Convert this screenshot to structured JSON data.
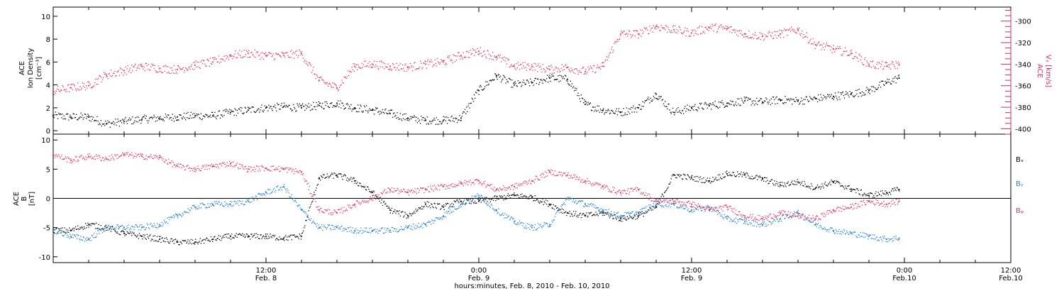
{
  "colors": {
    "black": "#000000",
    "red": "#e8325f",
    "blue": "#1f7fd9",
    "right_axis": "#c83060"
  },
  "chart_data": [
    {
      "type": "scatter",
      "panel": "top",
      "left_axis": {
        "label_lines": [
          "ACE",
          "Ion Density",
          "[cm⁻³]"
        ],
        "ylim": [
          -0.3,
          10.8
        ],
        "ticks": [
          0,
          2,
          4,
          6,
          8,
          10
        ]
      },
      "right_axis": {
        "label_lines": [
          "ACE",
          "Vₓ [km/s]"
        ],
        "ylim": [
          -405,
          -287
        ],
        "ticks": [
          -400,
          -380,
          -360,
          -340,
          -320,
          -300
        ]
      },
      "xlim_hours": [
        0,
        54
      ],
      "series": [
        {
          "name": "Ion Density",
          "color": "black",
          "axis": "left",
          "x": [
            0,
            1,
            2,
            3,
            4,
            5,
            6,
            7,
            8,
            9,
            10,
            11,
            12,
            13,
            14,
            15,
            16,
            17,
            18,
            19,
            20,
            21,
            22,
            23,
            24,
            25,
            26,
            27,
            28,
            29,
            30,
            31,
            32,
            33,
            34,
            35,
            36,
            37,
            38,
            39,
            40,
            41,
            42,
            43,
            44,
            45,
            46,
            47,
            47.7
          ],
          "y": [
            1.3,
            1.2,
            1.2,
            0.6,
            0.8,
            1.0,
            1.1,
            1.2,
            1.3,
            1.3,
            1.6,
            1.8,
            2.0,
            2.1,
            2.0,
            2.2,
            2.4,
            2.0,
            1.8,
            1.5,
            1.1,
            0.9,
            0.9,
            1.1,
            3.5,
            4.8,
            4.0,
            4.2,
            4.6,
            4.5,
            2.3,
            1.8,
            1.6,
            2.0,
            3.2,
            1.6,
            2.0,
            2.2,
            2.4,
            2.6,
            2.5,
            2.7,
            2.6,
            2.8,
            3.0,
            3.2,
            3.5,
            4.2,
            4.6
          ]
        },
        {
          "name": "Vx",
          "color": "red",
          "axis": "right",
          "x": [
            0,
            1,
            2,
            3,
            4,
            5,
            6,
            7,
            8,
            9,
            10,
            11,
            12,
            13,
            14,
            15,
            16,
            17,
            18,
            19,
            20,
            21,
            22,
            23,
            24,
            25,
            26,
            27,
            28,
            29,
            30,
            31,
            32,
            33,
            34,
            35,
            36,
            37,
            38,
            39,
            40,
            41,
            42,
            43,
            44,
            45,
            46,
            47,
            47.7
          ],
          "y": [
            -365,
            -362,
            -360,
            -350,
            -346,
            -342,
            -344,
            -345,
            -341,
            -338,
            -332,
            -330,
            -332,
            -332,
            -330,
            -355,
            -362,
            -342,
            -340,
            -342,
            -343,
            -340,
            -338,
            -332,
            -328,
            -333,
            -342,
            -342,
            -345,
            -343,
            -347,
            -342,
            -312,
            -312,
            -305,
            -308,
            -311,
            -306,
            -307,
            -312,
            -314,
            -312,
            -308,
            -322,
            -326,
            -330,
            -340,
            -342,
            -340
          ]
        }
      ]
    },
    {
      "type": "scatter",
      "panel": "bottom",
      "left_axis": {
        "label_lines": [
          "ACE",
          "B",
          "[nT]"
        ],
        "ylim": [
          -11,
          11
        ],
        "ticks": [
          -10,
          -5,
          0,
          5,
          10
        ]
      },
      "xlim_hours": [
        0,
        54
      ],
      "series": [
        {
          "name": "Bx",
          "color": "black",
          "x": [
            0,
            1,
            2,
            3,
            4,
            5,
            6,
            7,
            8,
            9,
            10,
            11,
            12,
            13,
            14,
            15,
            16,
            17,
            18,
            19,
            20,
            21,
            22,
            23,
            24,
            25,
            26,
            27,
            28,
            29,
            30,
            31,
            32,
            33,
            34,
            35,
            36,
            37,
            38,
            39,
            40,
            41,
            42,
            43,
            44,
            45,
            46,
            47,
            47.7
          ],
          "y": [
            -5.5,
            -5.5,
            -4.5,
            -5,
            -6,
            -6.5,
            -7,
            -7.5,
            -7.5,
            -7,
            -6.5,
            -6.5,
            -6.5,
            -6.8,
            -6.5,
            3.5,
            4,
            3,
            1,
            -2,
            -3,
            -1,
            -1.5,
            -0.5,
            -0.5,
            0,
            0.5,
            0.2,
            -1,
            -2.5,
            -3,
            -2.5,
            -3.5,
            -3,
            -1.5,
            4,
            3.5,
            3,
            4.2,
            4,
            3.3,
            2.3,
            2.8,
            1.8,
            2.8,
            1.6,
            0.5,
            1,
            1.5
          ]
        },
        {
          "name": "By",
          "color": "blue",
          "x": [
            0,
            1,
            2,
            3,
            4,
            5,
            6,
            7,
            8,
            9,
            10,
            11,
            12,
            13,
            14,
            15,
            16,
            17,
            18,
            19,
            20,
            21,
            22,
            23,
            24,
            25,
            26,
            27,
            28,
            29,
            30,
            31,
            32,
            33,
            34,
            35,
            36,
            37,
            38,
            39,
            40,
            41,
            42,
            43,
            44,
            45,
            46,
            47,
            47.7
          ],
          "y": [
            -5.5,
            -6.5,
            -7,
            -5,
            -5,
            -5,
            -4.5,
            -3,
            -1.5,
            -1,
            -1,
            -0.5,
            1,
            2,
            -2,
            -5,
            -5,
            -5.5,
            -5.5,
            -5.5,
            -5,
            -4.5,
            -3,
            -1,
            0.5,
            -2,
            -4,
            -5,
            -4.5,
            0,
            -1,
            -2,
            -3,
            -2.5,
            -1,
            -1,
            -2,
            -1.5,
            -3.5,
            -4,
            -4.5,
            -3.5,
            -2.5,
            -4.5,
            -5.5,
            -6,
            -6.5,
            -7,
            -6.8
          ]
        },
        {
          "name": "Bz",
          "color": "red",
          "x": [
            0,
            1,
            2,
            3,
            4,
            5,
            6,
            7,
            8,
            9,
            10,
            11,
            12,
            13,
            14,
            15,
            16,
            17,
            18,
            19,
            20,
            21,
            22,
            23,
            24,
            25,
            26,
            27,
            28,
            29,
            30,
            31,
            32,
            33,
            34,
            35,
            36,
            37,
            38,
            39,
            40,
            41,
            42,
            43,
            44,
            45,
            46,
            47,
            47.7
          ],
          "y": [
            7.5,
            6.5,
            7.2,
            6.8,
            7.5,
            7.2,
            7,
            5.5,
            5,
            5.5,
            6,
            5,
            5.2,
            5,
            4.5,
            -2,
            -2.5,
            -1,
            0,
            1.5,
            1,
            1.5,
            2,
            2.5,
            3,
            1.5,
            2,
            3,
            4.5,
            4,
            3,
            2,
            1,
            1.5,
            -0.5,
            -0.5,
            -1,
            -2,
            -1.5,
            -3,
            -3.5,
            -2.5,
            -3,
            -3.5,
            -2,
            -1.5,
            -0.5,
            -1,
            -0.5
          ]
        }
      ],
      "zero_line": true,
      "legend": {
        "placement": "right",
        "entries": [
          "Bₓ",
          "Bᵧ",
          "Bᵩ"
        ]
      }
    }
  ],
  "x_axis": {
    "major_ticks": [
      {
        "hours": 12,
        "time": "12:00",
        "date": "Feb. 8"
      },
      {
        "hours": 24,
        "time": "0:00",
        "date": "Feb. 9"
      },
      {
        "hours": 36,
        "time": "12:00",
        "date": "Feb. 9"
      },
      {
        "hours": 48,
        "time": "0:00",
        "date": "Feb.10"
      },
      {
        "hours": 60,
        "time": "12:00",
        "date": "Feb.10"
      }
    ],
    "title": "hours:minutes, Feb. 8, 2010 - Feb. 10, 2010"
  }
}
